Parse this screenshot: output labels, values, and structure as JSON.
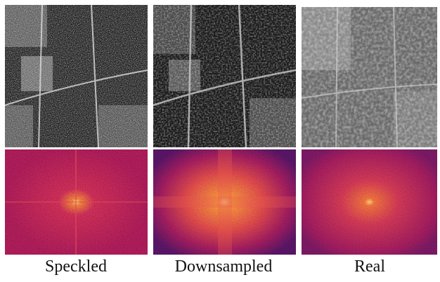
{
  "panels": [
    {
      "label": "Speckled"
    },
    {
      "label": "Downsampled"
    },
    {
      "label": "Real"
    }
  ]
}
